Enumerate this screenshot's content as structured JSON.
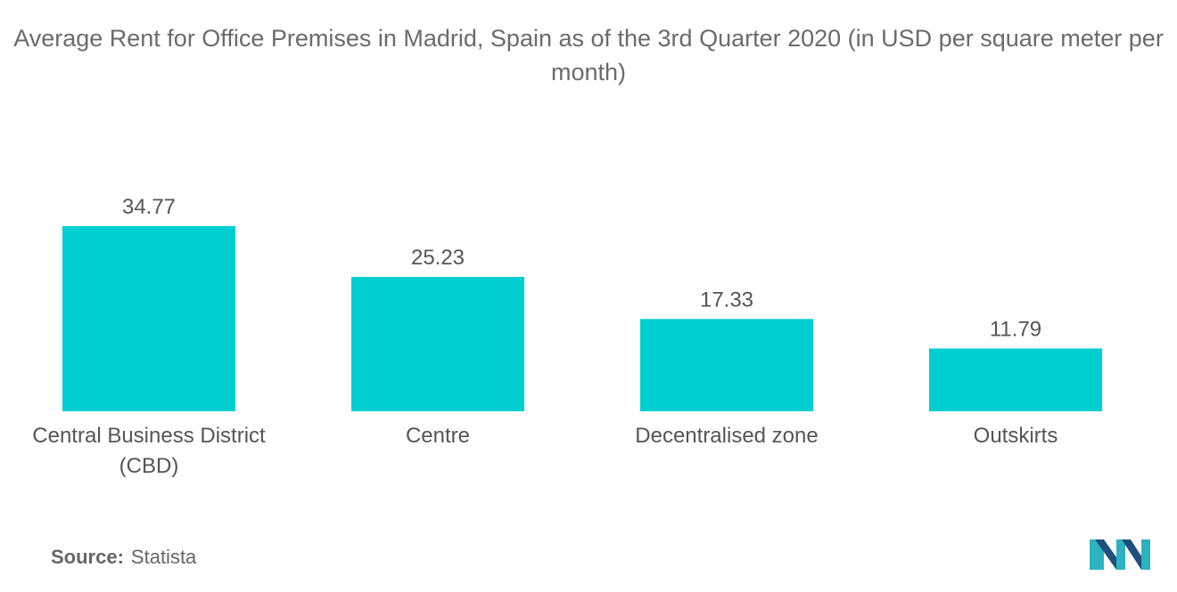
{
  "title": "Average Rent for Office Premises in Madrid, Spain as of the 3rd Quarter 2020 (in USD per square meter per month)",
  "source": {
    "label": "Source:",
    "value": "Statista"
  },
  "colors": {
    "bar": "#00CED1",
    "text": "#555555",
    "title": "#6b6b6b"
  },
  "chart_data": {
    "type": "bar",
    "title": "Average Rent for Office Premises in Madrid, Spain as of the 3rd Quarter 2020 (in USD per square meter per month)",
    "categories": [
      "Central Business District (CBD)",
      "Centre",
      "Decentralised zone",
      "Outskirts"
    ],
    "category_lines": [
      [
        "Central Business District",
        "(CBD)"
      ],
      [
        "Centre"
      ],
      [
        "Decentralised zone"
      ],
      [
        "Outskirts"
      ]
    ],
    "values": [
      34.77,
      25.23,
      17.33,
      11.79
    ],
    "data_labels": [
      "34.77",
      "25.23",
      "17.33",
      "11.79"
    ],
    "xlabel": "",
    "ylabel": "",
    "ylim": [
      0,
      34.77
    ],
    "grid": false,
    "legend": "none"
  }
}
